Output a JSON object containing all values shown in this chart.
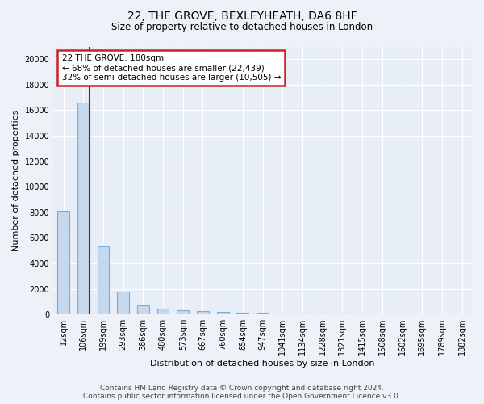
{
  "title": "22, THE GROVE, BEXLEYHEATH, DA6 8HF",
  "subtitle": "Size of property relative to detached houses in London",
  "xlabel": "Distribution of detached houses by size in London",
  "ylabel": "Number of detached properties",
  "categories": [
    "12sqm",
    "106sqm",
    "199sqm",
    "293sqm",
    "386sqm",
    "480sqm",
    "573sqm",
    "667sqm",
    "760sqm",
    "854sqm",
    "947sqm",
    "1041sqm",
    "1134sqm",
    "1228sqm",
    "1321sqm",
    "1415sqm",
    "1508sqm",
    "1602sqm",
    "1695sqm",
    "1789sqm",
    "1882sqm"
  ],
  "values": [
    8100,
    16600,
    5300,
    1800,
    700,
    430,
    320,
    250,
    200,
    160,
    130,
    100,
    80,
    65,
    50,
    40,
    30,
    25,
    20,
    15,
    10
  ],
  "bar_color": "#c5d8ee",
  "bar_edge_color": "#7aadd4",
  "property_line_color": "#8b1a1a",
  "annotation_text": "22 THE GROVE: 180sqm\n← 68% of detached houses are smaller (22,439)\n32% of semi-detached houses are larger (10,505) →",
  "annotation_box_color": "#ffffff",
  "annotation_box_edge_color": "#cc2222",
  "ylim": [
    0,
    21000
  ],
  "yticks": [
    0,
    2000,
    4000,
    6000,
    8000,
    10000,
    12000,
    14000,
    16000,
    18000,
    20000
  ],
  "footer_line1": "Contains HM Land Registry data © Crown copyright and database right 2024.",
  "footer_line2": "Contains public sector information licensed under the Open Government Licence v3.0.",
  "background_color": "#eef2f8",
  "plot_background": "#e8eef8",
  "grid_color": "#ffffff",
  "title_fontsize": 10,
  "subtitle_fontsize": 8.5,
  "axis_label_fontsize": 8,
  "tick_fontsize": 7,
  "footer_fontsize": 6.5,
  "bar_width": 0.6,
  "line_x_index": 1.5
}
